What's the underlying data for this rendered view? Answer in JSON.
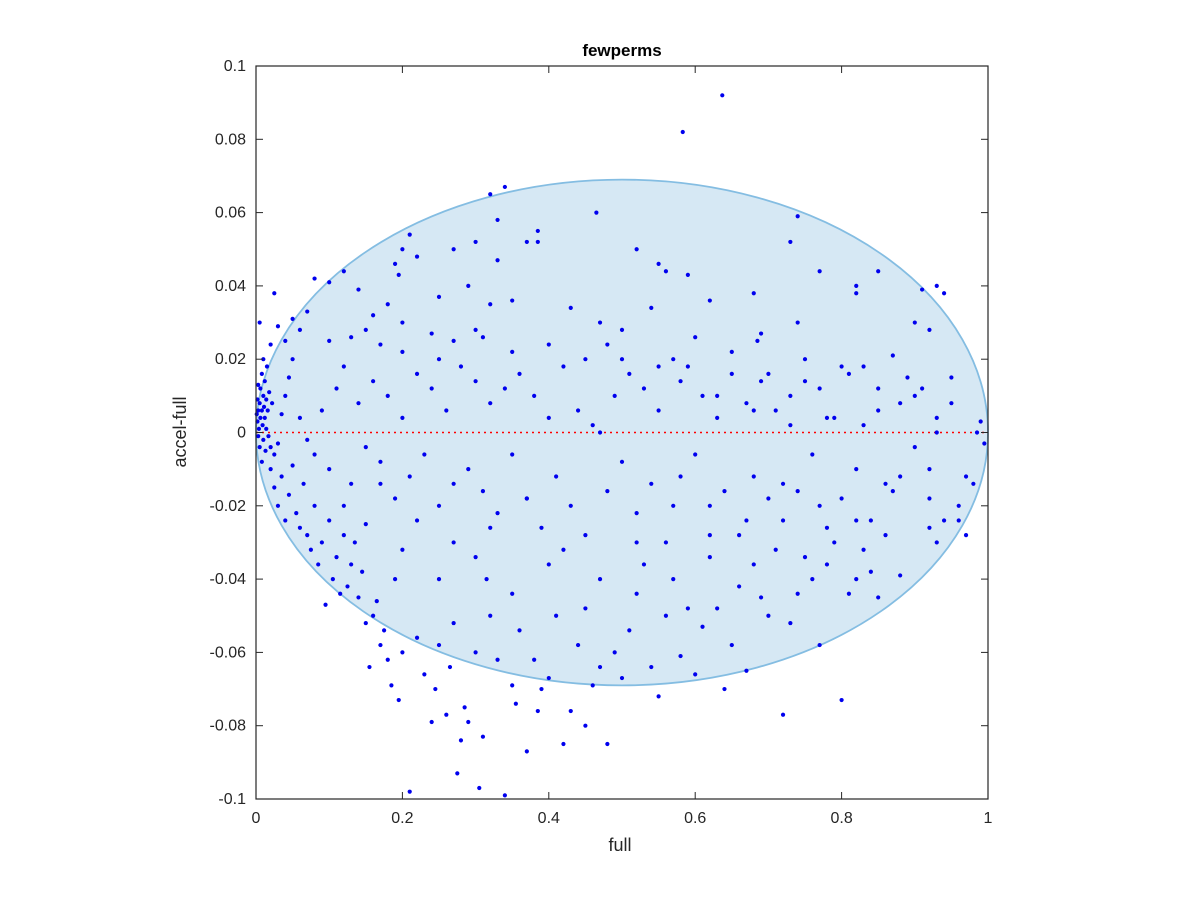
{
  "chart_data": {
    "type": "scatter",
    "title": "fewperms",
    "xlabel": "full",
    "ylabel": "accel-full",
    "xlim": [
      0,
      1
    ],
    "ylim": [
      -0.1,
      0.1
    ],
    "x_ticks": [
      0,
      0.2,
      0.4,
      0.6,
      0.8,
      1
    ],
    "x_tick_labels": [
      "0",
      "0.2",
      "0.4",
      "0.6",
      "0.8",
      "1"
    ],
    "y_ticks": [
      -0.1,
      -0.08,
      -0.06,
      -0.04,
      -0.02,
      0,
      0.02,
      0.04,
      0.06,
      0.08,
      0.1
    ],
    "y_tick_labels": [
      "-0.1",
      "-0.08",
      "-0.06",
      "-0.04",
      "-0.02",
      "0",
      "0.02",
      "0.04",
      "0.06",
      "0.08",
      "0.1"
    ],
    "grid": false,
    "reference_line": {
      "y": 0,
      "color": "#ff0000",
      "style": "dotted"
    },
    "ellipse": {
      "center": [
        0.5,
        0
      ],
      "radii": [
        0.5,
        0.069
      ],
      "fill": "#d6e8f4",
      "stroke": "#84bde2"
    },
    "point_color": "#0000ee",
    "points": [
      [
        0.637,
        0.092
      ],
      [
        0.583,
        0.082
      ],
      [
        0.34,
        0.067
      ],
      [
        0.32,
        0.065
      ],
      [
        0.465,
        0.06
      ],
      [
        0.74,
        0.059
      ],
      [
        0.33,
        0.058
      ],
      [
        0.385,
        0.055
      ],
      [
        0.37,
        0.052
      ],
      [
        0.385,
        0.052
      ],
      [
        0.3,
        0.052
      ],
      [
        0.52,
        0.05
      ],
      [
        0.73,
        0.052
      ],
      [
        0.21,
        0.054
      ],
      [
        0.2,
        0.05
      ],
      [
        0.27,
        0.05
      ],
      [
        0.22,
        0.048
      ],
      [
        0.33,
        0.047
      ],
      [
        0.55,
        0.046
      ],
      [
        0.56,
        0.044
      ],
      [
        0.19,
        0.046
      ],
      [
        0.59,
        0.043
      ],
      [
        0.77,
        0.044
      ],
      [
        0.85,
        0.044
      ],
      [
        0.12,
        0.044
      ],
      [
        0.08,
        0.042
      ],
      [
        0.195,
        0.043
      ],
      [
        0.025,
        0.038
      ],
      [
        0.005,
        0.03
      ],
      [
        0.91,
        0.039
      ],
      [
        0.93,
        0.04
      ],
      [
        0.94,
        0.038
      ],
      [
        0.82,
        0.04
      ],
      [
        0.82,
        0.038
      ],
      [
        0.68,
        0.038
      ],
      [
        0.1,
        0.041
      ],
      [
        0.14,
        0.039
      ],
      [
        0.18,
        0.035
      ],
      [
        0.25,
        0.037
      ],
      [
        0.29,
        0.04
      ],
      [
        0.35,
        0.036
      ],
      [
        0.62,
        0.036
      ],
      [
        0.54,
        0.034
      ],
      [
        0.32,
        0.035
      ],
      [
        0.16,
        0.032
      ],
      [
        0.07,
        0.033
      ],
      [
        0.05,
        0.031
      ],
      [
        0.03,
        0.029
      ],
      [
        0.06,
        0.028
      ],
      [
        0.9,
        0.03
      ],
      [
        0.92,
        0.028
      ],
      [
        0.74,
        0.03
      ],
      [
        0.69,
        0.027
      ],
      [
        0.685,
        0.025
      ],
      [
        0.47,
        0.03
      ],
      [
        0.5,
        0.028
      ],
      [
        0.2,
        0.03
      ],
      [
        0.24,
        0.027
      ],
      [
        0.27,
        0.025
      ],
      [
        0.31,
        0.026
      ],
      [
        0.13,
        0.026
      ],
      [
        0.17,
        0.024
      ],
      [
        0.04,
        0.025
      ],
      [
        0.02,
        0.024
      ],
      [
        0.01,
        0.02
      ],
      [
        0.015,
        0.018
      ],
      [
        0.008,
        0.016
      ],
      [
        0.012,
        0.014
      ],
      [
        0.003,
        0.013
      ],
      [
        0.006,
        0.012
      ],
      [
        0.018,
        0.011
      ],
      [
        0.01,
        0.01
      ],
      [
        0.002,
        0.009
      ],
      [
        0.014,
        0.009
      ],
      [
        0.022,
        0.008
      ],
      [
        0.005,
        0.008
      ],
      [
        0.011,
        0.007
      ],
      [
        0.003,
        0.006
      ],
      [
        0.008,
        0.006
      ],
      [
        0.016,
        0.006
      ],
      [
        0.001,
        0.005
      ],
      [
        0.006,
        0.004
      ],
      [
        0.012,
        0.004
      ],
      [
        0.002,
        0.003
      ],
      [
        0.009,
        0.002
      ],
      [
        0.004,
        0.001
      ],
      [
        0.014,
        0.001
      ],
      [
        0.003,
        -0.001
      ],
      [
        0.01,
        -0.002
      ],
      [
        0.017,
        -0.001
      ],
      [
        0.005,
        -0.004
      ],
      [
        0.013,
        -0.005
      ],
      [
        0.02,
        -0.004
      ],
      [
        0.008,
        -0.008
      ],
      [
        0.025,
        -0.006
      ],
      [
        0.03,
        -0.003
      ],
      [
        0.035,
        0.005
      ],
      [
        0.04,
        0.01
      ],
      [
        0.045,
        0.015
      ],
      [
        0.05,
        0.02
      ],
      [
        0.06,
        0.004
      ],
      [
        0.07,
        -0.002
      ],
      [
        0.08,
        -0.006
      ],
      [
        0.09,
        0.006
      ],
      [
        0.1,
        -0.01
      ],
      [
        0.11,
        0.012
      ],
      [
        0.12,
        0.018
      ],
      [
        0.13,
        -0.014
      ],
      [
        0.14,
        0.008
      ],
      [
        0.15,
        -0.004
      ],
      [
        0.16,
        0.014
      ],
      [
        0.17,
        -0.008
      ],
      [
        0.18,
        0.01
      ],
      [
        0.19,
        -0.018
      ],
      [
        0.2,
        0.004
      ],
      [
        0.21,
        -0.012
      ],
      [
        0.22,
        0.016
      ],
      [
        0.23,
        -0.006
      ],
      [
        0.24,
        0.012
      ],
      [
        0.25,
        -0.02
      ],
      [
        0.26,
        0.006
      ],
      [
        0.27,
        -0.014
      ],
      [
        0.28,
        0.018
      ],
      [
        0.29,
        -0.01
      ],
      [
        0.3,
        0.014
      ],
      [
        0.31,
        -0.016
      ],
      [
        0.32,
        0.008
      ],
      [
        0.33,
        -0.022
      ],
      [
        0.34,
        0.012
      ],
      [
        0.35,
        -0.006
      ],
      [
        0.36,
        0.016
      ],
      [
        0.37,
        -0.018
      ],
      [
        0.38,
        0.01
      ],
      [
        0.39,
        -0.026
      ],
      [
        0.4,
        0.004
      ],
      [
        0.41,
        -0.012
      ],
      [
        0.42,
        0.018
      ],
      [
        0.43,
        -0.02
      ],
      [
        0.44,
        0.006
      ],
      [
        0.45,
        -0.028
      ],
      [
        0.46,
        0.002
      ],
      [
        0.47,
        0.0
      ],
      [
        0.48,
        -0.016
      ],
      [
        0.49,
        0.01
      ],
      [
        0.5,
        -0.008
      ],
      [
        0.51,
        0.016
      ],
      [
        0.52,
        -0.022
      ],
      [
        0.53,
        0.012
      ],
      [
        0.54,
        -0.014
      ],
      [
        0.55,
        0.006
      ],
      [
        0.56,
        -0.03
      ],
      [
        0.57,
        0.02
      ],
      [
        0.58,
        -0.012
      ],
      [
        0.59,
        0.018
      ],
      [
        0.6,
        -0.006
      ],
      [
        0.61,
        0.01
      ],
      [
        0.62,
        -0.02
      ],
      [
        0.63,
        0.004
      ],
      [
        0.64,
        -0.016
      ],
      [
        0.65,
        0.016
      ],
      [
        0.66,
        -0.028
      ],
      [
        0.67,
        0.008
      ],
      [
        0.68,
        -0.012
      ],
      [
        0.69,
        0.014
      ],
      [
        0.7,
        -0.018
      ],
      [
        0.71,
        0.006
      ],
      [
        0.72,
        -0.024
      ],
      [
        0.73,
        0.01
      ],
      [
        0.74,
        -0.016
      ],
      [
        0.75,
        0.02
      ],
      [
        0.76,
        -0.006
      ],
      [
        0.77,
        0.012
      ],
      [
        0.78,
        -0.026
      ],
      [
        0.79,
        0.004
      ],
      [
        0.8,
        -0.018
      ],
      [
        0.81,
        0.016
      ],
      [
        0.82,
        -0.01
      ],
      [
        0.83,
        0.018
      ],
      [
        0.84,
        -0.024
      ],
      [
        0.85,
        0.006
      ],
      [
        0.86,
        -0.014
      ],
      [
        0.87,
        0.021
      ],
      [
        0.88,
        -0.012
      ],
      [
        0.89,
        0.015
      ],
      [
        0.9,
        -0.004
      ],
      [
        0.91,
        0.012
      ],
      [
        0.92,
        -0.018
      ],
      [
        0.93,
        0.0
      ],
      [
        0.94,
        -0.024
      ],
      [
        0.95,
        0.008
      ],
      [
        0.96,
        -0.02
      ],
      [
        0.97,
        -0.012
      ],
      [
        0.98,
        -0.014
      ],
      [
        0.99,
        0.003
      ],
      [
        0.995,
        -0.003
      ],
      [
        0.985,
        0.0
      ],
      [
        0.02,
        -0.01
      ],
      [
        0.025,
        -0.015
      ],
      [
        0.03,
        -0.02
      ],
      [
        0.035,
        -0.012
      ],
      [
        0.04,
        -0.024
      ],
      [
        0.045,
        -0.017
      ],
      [
        0.05,
        -0.009
      ],
      [
        0.055,
        -0.022
      ],
      [
        0.06,
        -0.026
      ],
      [
        0.065,
        -0.014
      ],
      [
        0.07,
        -0.028
      ],
      [
        0.075,
        -0.032
      ],
      [
        0.08,
        -0.02
      ],
      [
        0.085,
        -0.036
      ],
      [
        0.09,
        -0.03
      ],
      [
        0.095,
        -0.047
      ],
      [
        0.1,
        -0.024
      ],
      [
        0.105,
        -0.04
      ],
      [
        0.11,
        -0.034
      ],
      [
        0.115,
        -0.044
      ],
      [
        0.12,
        -0.028
      ],
      [
        0.125,
        -0.042
      ],
      [
        0.13,
        -0.036
      ],
      [
        0.135,
        -0.03
      ],
      [
        0.14,
        -0.045
      ],
      [
        0.145,
        -0.038
      ],
      [
        0.15,
        -0.052
      ],
      [
        0.155,
        -0.064
      ],
      [
        0.16,
        -0.05
      ],
      [
        0.165,
        -0.046
      ],
      [
        0.17,
        -0.058
      ],
      [
        0.175,
        -0.054
      ],
      [
        0.18,
        -0.062
      ],
      [
        0.185,
        -0.069
      ],
      [
        0.19,
        -0.04
      ],
      [
        0.195,
        -0.073
      ],
      [
        0.2,
        -0.06
      ],
      [
        0.21,
        -0.098
      ],
      [
        0.22,
        -0.056
      ],
      [
        0.23,
        -0.066
      ],
      [
        0.24,
        -0.079
      ],
      [
        0.245,
        -0.07
      ],
      [
        0.25,
        -0.058
      ],
      [
        0.26,
        -0.077
      ],
      [
        0.265,
        -0.064
      ],
      [
        0.27,
        -0.052
      ],
      [
        0.275,
        -0.093
      ],
      [
        0.28,
        -0.084
      ],
      [
        0.285,
        -0.075
      ],
      [
        0.29,
        -0.079
      ],
      [
        0.3,
        -0.06
      ],
      [
        0.305,
        -0.097
      ],
      [
        0.31,
        -0.083
      ],
      [
        0.315,
        -0.04
      ],
      [
        0.32,
        -0.05
      ],
      [
        0.33,
        -0.062
      ],
      [
        0.34,
        -0.099
      ],
      [
        0.35,
        -0.069
      ],
      [
        0.355,
        -0.074
      ],
      [
        0.36,
        -0.054
      ],
      [
        0.37,
        -0.087
      ],
      [
        0.38,
        -0.062
      ],
      [
        0.385,
        -0.076
      ],
      [
        0.39,
        -0.07
      ],
      [
        0.4,
        -0.067
      ],
      [
        0.41,
        -0.05
      ],
      [
        0.42,
        -0.085
      ],
      [
        0.43,
        -0.076
      ],
      [
        0.44,
        -0.058
      ],
      [
        0.45,
        -0.08
      ],
      [
        0.46,
        -0.069
      ],
      [
        0.47,
        -0.064
      ],
      [
        0.48,
        -0.085
      ],
      [
        0.49,
        -0.06
      ],
      [
        0.5,
        -0.067
      ],
      [
        0.51,
        -0.054
      ],
      [
        0.52,
        -0.044
      ],
      [
        0.53,
        -0.036
      ],
      [
        0.54,
        -0.064
      ],
      [
        0.55,
        -0.072
      ],
      [
        0.56,
        -0.05
      ],
      [
        0.57,
        -0.04
      ],
      [
        0.58,
        -0.061
      ],
      [
        0.59,
        -0.048
      ],
      [
        0.6,
        -0.066
      ],
      [
        0.61,
        -0.053
      ],
      [
        0.62,
        -0.034
      ],
      [
        0.63,
        -0.048
      ],
      [
        0.64,
        -0.07
      ],
      [
        0.65,
        -0.058
      ],
      [
        0.66,
        -0.042
      ],
      [
        0.67,
        -0.065
      ],
      [
        0.68,
        -0.036
      ],
      [
        0.69,
        -0.045
      ],
      [
        0.7,
        -0.05
      ],
      [
        0.71,
        -0.032
      ],
      [
        0.72,
        -0.077
      ],
      [
        0.73,
        -0.052
      ],
      [
        0.74,
        -0.044
      ],
      [
        0.75,
        -0.034
      ],
      [
        0.76,
        -0.04
      ],
      [
        0.77,
        -0.058
      ],
      [
        0.78,
        -0.036
      ],
      [
        0.79,
        -0.03
      ],
      [
        0.8,
        -0.073
      ],
      [
        0.81,
        -0.044
      ],
      [
        0.82,
        -0.04
      ],
      [
        0.83,
        -0.032
      ],
      [
        0.84,
        -0.038
      ],
      [
        0.85,
        -0.045
      ],
      [
        0.86,
        -0.028
      ],
      [
        0.88,
        -0.039
      ],
      [
        0.92,
        -0.026
      ],
      [
        0.93,
        -0.03
      ],
      [
        0.96,
        -0.024
      ],
      [
        0.97,
        -0.028
      ],
      [
        0.4,
        -0.036
      ],
      [
        0.45,
        -0.048
      ],
      [
        0.35,
        -0.044
      ],
      [
        0.3,
        -0.034
      ],
      [
        0.25,
        -0.04
      ],
      [
        0.2,
        -0.032
      ],
      [
        0.15,
        -0.025
      ],
      [
        0.12,
        -0.02
      ],
      [
        0.17,
        -0.014
      ],
      [
        0.22,
        -0.024
      ],
      [
        0.27,
        -0.03
      ],
      [
        0.32,
        -0.026
      ],
      [
        0.37,
        -0.018
      ],
      [
        0.42,
        -0.032
      ],
      [
        0.47,
        -0.04
      ],
      [
        0.52,
        -0.03
      ],
      [
        0.57,
        -0.02
      ],
      [
        0.62,
        -0.028
      ],
      [
        0.67,
        -0.024
      ],
      [
        0.72,
        -0.014
      ],
      [
        0.77,
        -0.02
      ],
      [
        0.82,
        -0.024
      ],
      [
        0.87,
        -0.016
      ],
      [
        0.92,
        -0.01
      ],
      [
        0.1,
        0.025
      ],
      [
        0.15,
        0.028
      ],
      [
        0.2,
        0.022
      ],
      [
        0.25,
        0.02
      ],
      [
        0.3,
        0.028
      ],
      [
        0.35,
        0.022
      ],
      [
        0.4,
        0.024
      ],
      [
        0.45,
        0.02
      ],
      [
        0.5,
        0.02
      ],
      [
        0.55,
        0.018
      ],
      [
        0.6,
        0.026
      ],
      [
        0.65,
        0.022
      ],
      [
        0.7,
        0.016
      ],
      [
        0.75,
        0.014
      ],
      [
        0.8,
        0.018
      ],
      [
        0.85,
        0.012
      ],
      [
        0.9,
        0.01
      ],
      [
        0.95,
        0.015
      ],
      [
        0.43,
        0.034
      ],
      [
        0.48,
        0.024
      ],
      [
        0.58,
        0.014
      ],
      [
        0.63,
        0.01
      ],
      [
        0.68,
        0.006
      ],
      [
        0.73,
        0.002
      ],
      [
        0.78,
        0.004
      ],
      [
        0.83,
        0.002
      ],
      [
        0.88,
        0.008
      ],
      [
        0.93,
        0.004
      ]
    ]
  }
}
